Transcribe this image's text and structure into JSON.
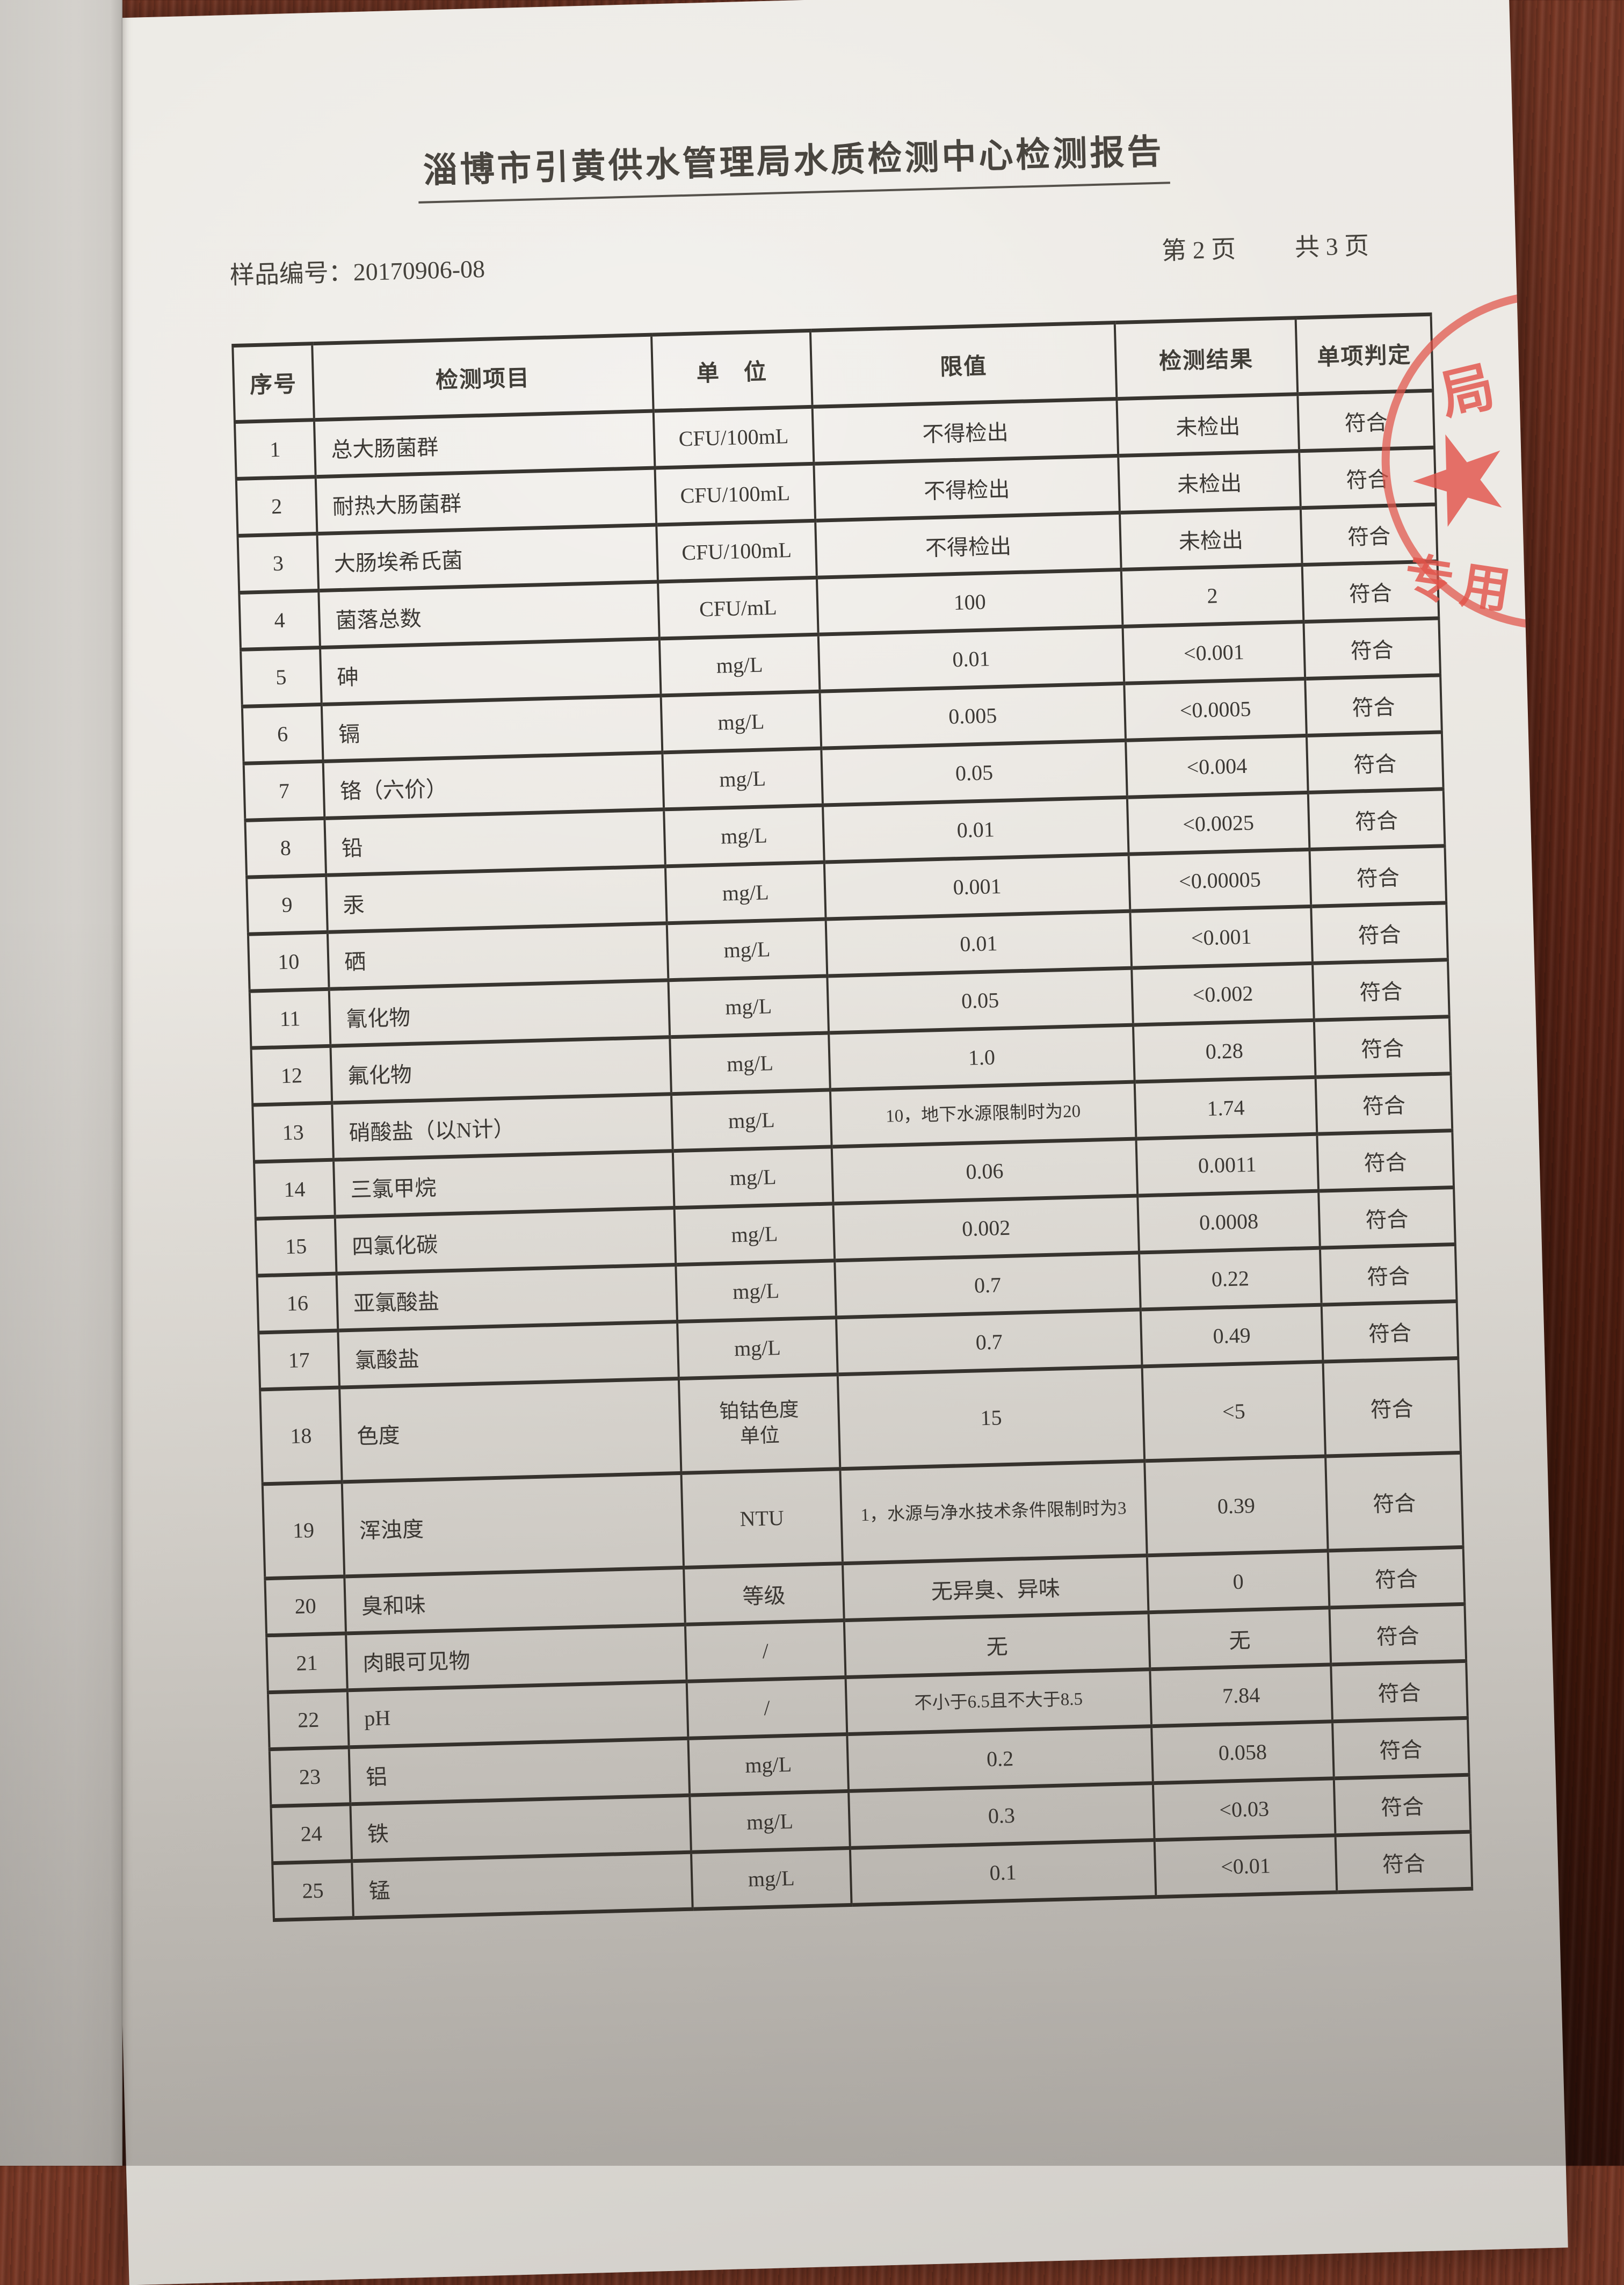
{
  "page": {
    "title": "淄博市引黄供水管理局水质检测中心检测报告",
    "sample_label": "样品编号：20170906-08",
    "page_number": "第 2 页",
    "page_total": "共 3 页"
  },
  "stamp": {
    "char_top": "局",
    "star": "★",
    "chars_bottom": "专用",
    "color": "#e15348"
  },
  "table": {
    "headers": [
      "序号",
      "检测项目",
      "单　位",
      "限值",
      "检测结果",
      "单项判定"
    ],
    "rows": [
      [
        "1",
        "总大肠菌群",
        "CFU/100mL",
        "不得检出",
        "未检出",
        "符合"
      ],
      [
        "2",
        "耐热大肠菌群",
        "CFU/100mL",
        "不得检出",
        "未检出",
        "符合"
      ],
      [
        "3",
        "大肠埃希氏菌",
        "CFU/100mL",
        "不得检出",
        "未检出",
        "符合"
      ],
      [
        "4",
        "菌落总数",
        "CFU/mL",
        "100",
        "2",
        "符合"
      ],
      [
        "5",
        "砷",
        "mg/L",
        "0.01",
        "<0.001",
        "符合"
      ],
      [
        "6",
        "镉",
        "mg/L",
        "0.005",
        "<0.0005",
        "符合"
      ],
      [
        "7",
        "铬（六价）",
        "mg/L",
        "0.05",
        "<0.004",
        "符合"
      ],
      [
        "8",
        "铅",
        "mg/L",
        "0.01",
        "<0.0025",
        "符合"
      ],
      [
        "9",
        "汞",
        "mg/L",
        "0.001",
        "<0.00005",
        "符合"
      ],
      [
        "10",
        "硒",
        "mg/L",
        "0.01",
        "<0.001",
        "符合"
      ],
      [
        "11",
        "氰化物",
        "mg/L",
        "0.05",
        "<0.002",
        "符合"
      ],
      [
        "12",
        "氟化物",
        "mg/L",
        "1.0",
        "0.28",
        "符合"
      ],
      [
        "13",
        "硝酸盐（以N计）",
        "mg/L",
        "10，地下水源限制时为20",
        "1.74",
        "符合"
      ],
      [
        "14",
        "三氯甲烷",
        "mg/L",
        "0.06",
        "0.0011",
        "符合"
      ],
      [
        "15",
        "四氯化碳",
        "mg/L",
        "0.002",
        "0.0008",
        "符合"
      ],
      [
        "16",
        "亚氯酸盐",
        "mg/L",
        "0.7",
        "0.22",
        "符合"
      ],
      [
        "17",
        "氯酸盐",
        "mg/L",
        "0.7",
        "0.49",
        "符合"
      ],
      [
        "18",
        "色度",
        "铂钴色度单位",
        "15",
        "<5",
        "符合"
      ],
      [
        "19",
        "浑浊度",
        "NTU",
        "1，水源与净水技术条件限制时为3",
        "0.39",
        "符合"
      ],
      [
        "20",
        "臭和味",
        "等级",
        "无异臭、异味",
        "0",
        "符合"
      ],
      [
        "21",
        "肉眼可见物",
        "/",
        "无",
        "无",
        "符合"
      ],
      [
        "22",
        "pH",
        "/",
        "不小于6.5且不大于8.5",
        "7.84",
        "符合"
      ],
      [
        "23",
        "铝",
        "mg/L",
        "0.2",
        "0.058",
        "符合"
      ],
      [
        "24",
        "铁",
        "mg/L",
        "0.3",
        "<0.03",
        "符合"
      ],
      [
        "25",
        "锰",
        "mg/L",
        "0.1",
        "<0.01",
        "符合"
      ]
    ]
  }
}
